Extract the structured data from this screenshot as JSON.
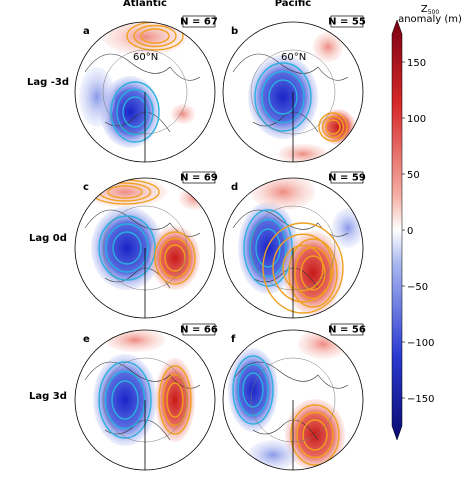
{
  "columns": [
    "Atlantic",
    "Pacific"
  ],
  "rows": [
    "Lag -3d",
    "Lag 0d",
    "Lag 3d"
  ],
  "panels": [
    {
      "letter": "a",
      "n": "N = 67"
    },
    {
      "letter": "b",
      "n": "N = 55"
    },
    {
      "letter": "c",
      "n": "N = 69"
    },
    {
      "letter": "d",
      "n": "N = 59"
    },
    {
      "letter": "e",
      "n": "N = 66"
    },
    {
      "letter": "f",
      "n": "N = 56"
    }
  ],
  "latitude_label": "60°N",
  "colorbar": {
    "symbol": "Z",
    "subscript": "500",
    "unit_label": "anomaly (m)",
    "ylim": [
      -175,
      175
    ],
    "ticks": [
      150,
      100,
      50,
      0,
      {
        "value": -50,
        "label": "−50"
      },
      {
        "value": -100,
        "label": "−100"
      },
      {
        "value": -150,
        "label": "−150"
      }
    ]
  }
}
